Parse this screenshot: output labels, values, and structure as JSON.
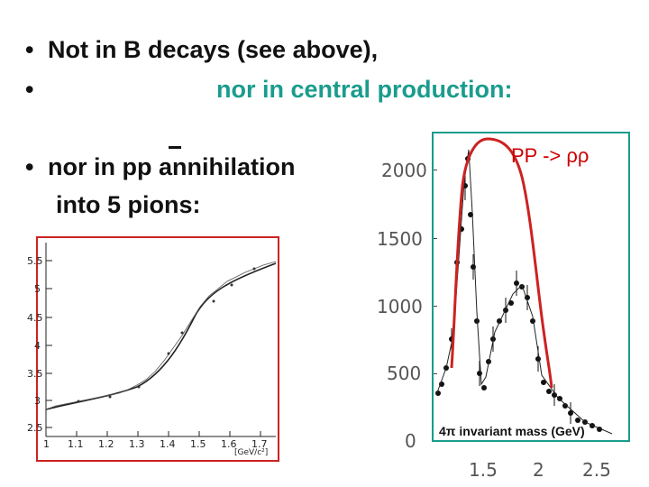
{
  "slide": {
    "bullet_symbol": "•",
    "line1": "Not in B decays (see above),",
    "line2": "nor in central production:",
    "line3": "nor in pp annihilation",
    "line4": "into 5 pions:",
    "accent_teal": "#1a9c8c",
    "frame_red": "#cc2222",
    "frame_teal": "#1a9c8c"
  },
  "left_plot": {
    "y_ticks": [
      "5.5",
      "5",
      "4.5",
      "4",
      "3.5",
      "3",
      "2.5"
    ],
    "x_ticks": [
      "1",
      "1.1",
      "1.2",
      "1.3",
      "1.4",
      "1.5",
      "1.6",
      "1.7"
    ],
    "x_unit": "[GeV/c²]"
  },
  "right_plot": {
    "title": "PP -> ρρ",
    "y_ticks": [
      "2000",
      "1500",
      "1000",
      "500",
      "0"
    ],
    "x_ticks": [
      "1.5",
      "2",
      "2.5"
    ],
    "xlabel": "4π invariant mass (GeV)"
  }
}
